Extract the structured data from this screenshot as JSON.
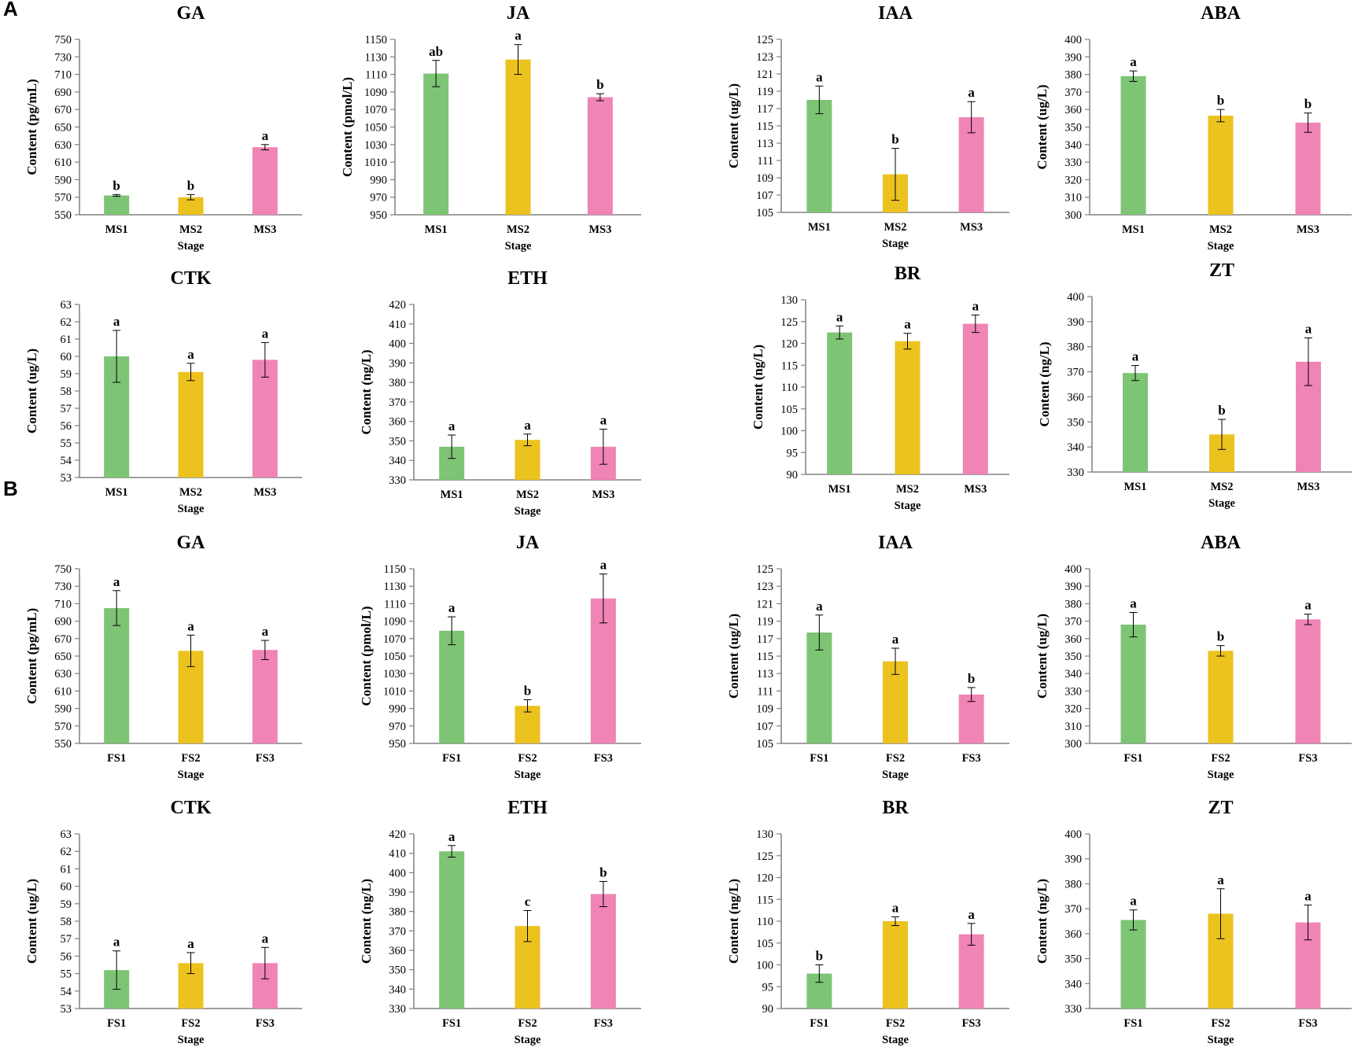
{
  "panel_labels": [
    "A",
    "B"
  ],
  "colors": {
    "series": [
      "#7dc475",
      "#ecc21f",
      "#f084b5"
    ],
    "axis": "#808080",
    "err": "#000000"
  },
  "chart_data": [
    {
      "type": "bar",
      "group": "A",
      "title": "GA",
      "ylabel": "Content (pg/mL)",
      "xlabel": "Stage",
      "ylim": [
        550,
        750
      ],
      "ytick_step": 20,
      "categories": [
        "MS1",
        "MS2",
        "MS3"
      ],
      "values": [
        572,
        570,
        627
      ],
      "errors": [
        1,
        3,
        3
      ],
      "significance": [
        "b",
        "b",
        "a"
      ]
    },
    {
      "type": "bar",
      "group": "A",
      "title": "JA",
      "ylabel": "Content (pmol/L)",
      "xlabel": "Stage",
      "ylim": [
        950,
        1150
      ],
      "ytick_step": 20,
      "categories": [
        "MS1",
        "MS2",
        "MS3"
      ],
      "values": [
        1111,
        1127,
        1084
      ],
      "errors": [
        15,
        17,
        4
      ],
      "significance": [
        "ab",
        "a",
        "b"
      ]
    },
    {
      "type": "bar",
      "group": "A",
      "title": "IAA",
      "ylabel": "Content (ug/L)",
      "xlabel": "Stage",
      "ylim": [
        105,
        125
      ],
      "ytick_step": 2,
      "categories": [
        "MS1",
        "MS2",
        "MS3"
      ],
      "values": [
        118,
        109.4,
        116
      ],
      "errors": [
        1.6,
        3,
        1.8
      ],
      "significance": [
        "a",
        "b",
        "a"
      ]
    },
    {
      "type": "bar",
      "group": "A",
      "title": "ABA",
      "ylabel": "Content (ug/L)",
      "xlabel": "Stage",
      "ylim": [
        300,
        400
      ],
      "ytick_step": 10,
      "categories": [
        "MS1",
        "MS2",
        "MS3"
      ],
      "values": [
        379,
        356.5,
        352.5
      ],
      "errors": [
        3,
        3.5,
        5.5
      ],
      "significance": [
        "a",
        "b",
        "b"
      ]
    },
    {
      "type": "bar",
      "group": "A",
      "title": "CTK",
      "ylabel": "Content (ug/L)",
      "xlabel": "Stage",
      "ylim": [
        53,
        63
      ],
      "ytick_step": 1,
      "categories": [
        "MS1",
        "MS2",
        "MS3"
      ],
      "values": [
        60,
        59.1,
        59.8
      ],
      "errors": [
        1.5,
        0.5,
        1
      ],
      "significance": [
        "a",
        "a",
        "a"
      ]
    },
    {
      "type": "bar",
      "group": "A",
      "title": "ETH",
      "ylabel": "Content (ng/L)",
      "xlabel": "Stage",
      "ylim": [
        330,
        420
      ],
      "ytick_step": 10,
      "categories": [
        "MS1",
        "MS2",
        "MS3"
      ],
      "values": [
        347,
        350.5,
        347
      ],
      "errors": [
        6,
        3,
        9
      ],
      "significance": [
        "a",
        "a",
        "a"
      ]
    },
    {
      "type": "bar",
      "group": "A",
      "title": "BR",
      "ylabel": "Content (ng/L)",
      "xlabel": "Stage",
      "ylim": [
        90,
        130
      ],
      "ytick_step": 5,
      "categories": [
        "MS1",
        "MS2",
        "MS3"
      ],
      "values": [
        122.5,
        120.5,
        124.5
      ],
      "errors": [
        1.5,
        1.8,
        2
      ],
      "significance": [
        "a",
        "a",
        "a"
      ]
    },
    {
      "type": "bar",
      "group": "A",
      "title": "ZT",
      "ylabel": "Content (ng/L)",
      "xlabel": "Stage",
      "ylim": [
        330,
        400
      ],
      "ytick_step": 10,
      "categories": [
        "MS1",
        "MS2",
        "MS3"
      ],
      "values": [
        369.5,
        345,
        374
      ],
      "errors": [
        3,
        6,
        9.5
      ],
      "significance": [
        "a",
        "b",
        "a"
      ]
    },
    {
      "type": "bar",
      "group": "B",
      "title": "GA",
      "ylabel": "Content (pg/mL)",
      "xlabel": "Stage",
      "ylim": [
        550,
        750
      ],
      "ytick_step": 20,
      "categories": [
        "FS1",
        "FS2",
        "FS3"
      ],
      "values": [
        705,
        656,
        657
      ],
      "errors": [
        20,
        18,
        11
      ],
      "significance": [
        "a",
        "a",
        "a"
      ]
    },
    {
      "type": "bar",
      "group": "B",
      "title": "JA",
      "ylabel": "Content (pmol/L)",
      "xlabel": "Stage",
      "ylim": [
        950,
        1150
      ],
      "ytick_step": 20,
      "categories": [
        "FS1",
        "FS2",
        "FS3"
      ],
      "values": [
        1079,
        993,
        1116
      ],
      "errors": [
        16,
        7,
        28
      ],
      "significance": [
        "a",
        "b",
        "a"
      ]
    },
    {
      "type": "bar",
      "group": "B",
      "title": "IAA",
      "ylabel": "Content (ug/L)",
      "xlabel": "Stage",
      "ylim": [
        105,
        125
      ],
      "ytick_step": 2,
      "categories": [
        "FS1",
        "FS2",
        "FS3"
      ],
      "values": [
        117.7,
        114.4,
        110.6
      ],
      "errors": [
        2,
        1.5,
        0.8
      ],
      "significance": [
        "a",
        "a",
        "b"
      ]
    },
    {
      "type": "bar",
      "group": "B",
      "title": "ABA",
      "ylabel": "Content (ug/L)",
      "xlabel": "Stage",
      "ylim": [
        300,
        400
      ],
      "ytick_step": 10,
      "categories": [
        "FS1",
        "FS2",
        "FS3"
      ],
      "values": [
        368,
        353,
        371
      ],
      "errors": [
        7,
        3,
        3
      ],
      "significance": [
        "a",
        "b",
        "a"
      ]
    },
    {
      "type": "bar",
      "group": "B",
      "title": "CTK",
      "ylabel": "Content (ug/L)",
      "xlabel": "Stage",
      "ylim": [
        53,
        63
      ],
      "ytick_step": 1,
      "categories": [
        "FS1",
        "FS2",
        "FS3"
      ],
      "values": [
        55.2,
        55.6,
        55.6
      ],
      "errors": [
        1.1,
        0.6,
        0.9
      ],
      "significance": [
        "a",
        "a",
        "a"
      ]
    },
    {
      "type": "bar",
      "group": "B",
      "title": "ETH",
      "ylabel": "Content (ng/L)",
      "xlabel": "Stage",
      "ylim": [
        330,
        420
      ],
      "ytick_step": 10,
      "categories": [
        "FS1",
        "FS2",
        "FS3"
      ],
      "values": [
        411,
        372.5,
        389
      ],
      "errors": [
        3,
        8,
        6.5
      ],
      "significance": [
        "a",
        "c",
        "b"
      ]
    },
    {
      "type": "bar",
      "group": "B",
      "title": "BR",
      "ylabel": "Content (ng/L)",
      "xlabel": "Stage",
      "ylim": [
        90,
        130
      ],
      "ytick_step": 5,
      "categories": [
        "FS1",
        "FS2",
        "FS3"
      ],
      "values": [
        98,
        110,
        107
      ],
      "errors": [
        2,
        1,
        2.5
      ],
      "significance": [
        "b",
        "a",
        "a"
      ]
    },
    {
      "type": "bar",
      "group": "B",
      "title": "ZT",
      "ylabel": "Content (ng/L)",
      "xlabel": "Stage",
      "ylim": [
        330,
        400
      ],
      "ytick_step": 10,
      "categories": [
        "FS1",
        "FS2",
        "FS3"
      ],
      "values": [
        365.5,
        368,
        364.5
      ],
      "errors": [
        4,
        10,
        7
      ],
      "significance": [
        "a",
        "a",
        "a"
      ]
    }
  ]
}
